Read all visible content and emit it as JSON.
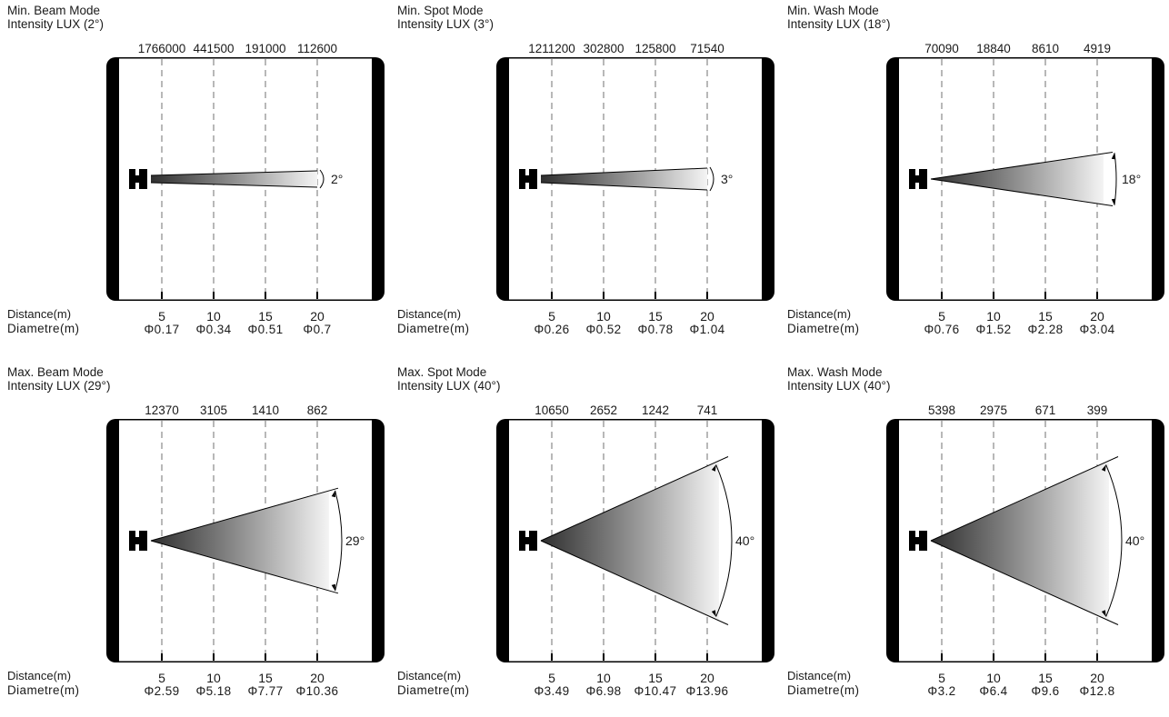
{
  "colors": {
    "ink": "#000000",
    "dashed_grid": "#9a9a9a",
    "beam_dark": "#2f2f2f",
    "beam_light": "#f4f4f4"
  },
  "panels": [
    {
      "title": "Min. Beam Mode",
      "subtitle": "Intensity LUX (2°)",
      "angle_deg": 2,
      "angle_label": "2°",
      "intensity": [
        "1766000",
        "441500",
        "191000",
        "112600"
      ],
      "distance_label": "Distance(m)",
      "distances": [
        "5",
        "10",
        "15",
        "20"
      ],
      "diameter_label": "Diametre(m)",
      "diameters": [
        "Φ0.17",
        "Φ0.34",
        "Φ0.51",
        "Φ0.7"
      ]
    },
    {
      "title": "Min. Spot Mode",
      "subtitle": "Intensity LUX (3°)",
      "angle_deg": 3,
      "angle_label": "3°",
      "intensity": [
        "1211200",
        "302800",
        "125800",
        "71540"
      ],
      "distance_label": "Distance(m)",
      "distances": [
        "5",
        "10",
        "15",
        "20"
      ],
      "diameter_label": "Diametre(m)",
      "diameters": [
        "Φ0.26",
        "Φ0.52",
        "Φ0.78",
        "Φ1.04"
      ]
    },
    {
      "title": "Min. Wash Mode",
      "subtitle": "Intensity LUX (18°)",
      "angle_deg": 18,
      "angle_label": "18°",
      "intensity": [
        "70090",
        "18840",
        "8610",
        "4919"
      ],
      "distance_label": "Distance(m)",
      "distances": [
        "5",
        "10",
        "15",
        "20"
      ],
      "diameter_label": "Diametre(m)",
      "diameters": [
        "Φ0.76",
        "Φ1.52",
        "Φ2.28",
        "Φ3.04"
      ]
    },
    {
      "title": "Max. Beam Mode",
      "subtitle": "Intensity LUX (29°)",
      "angle_deg": 29,
      "angle_label": "29°",
      "intensity": [
        "12370",
        "3105",
        "1410",
        "862"
      ],
      "distance_label": "Distance(m)",
      "distances": [
        "5",
        "10",
        "15",
        "20"
      ],
      "diameter_label": "Diametre(m)",
      "diameters": [
        "Φ2.59",
        "Φ5.18",
        "Φ7.77",
        "Φ10.36"
      ]
    },
    {
      "title": "Max. Spot Mode",
      "subtitle": "Intensity LUX (40°)",
      "angle_deg": 40,
      "angle_label": "40°",
      "intensity": [
        "10650",
        "2652",
        "1242",
        "741"
      ],
      "distance_label": "Distance(m)",
      "distances": [
        "5",
        "10",
        "15",
        "20"
      ],
      "diameter_label": "Diametre(m)",
      "diameters": [
        "Φ3.49",
        "Φ6.98",
        "Φ10.47",
        "Φ13.96"
      ]
    },
    {
      "title": "Max. Wash Mode",
      "subtitle": "Intensity LUX (40°)",
      "angle_deg": 40,
      "angle_label": "40°",
      "intensity": [
        "5398",
        "2975",
        "671",
        "399"
      ],
      "distance_label": "Distance(m)",
      "distances": [
        "5",
        "10",
        "15",
        "20"
      ],
      "diameter_label": "Diametre(m)",
      "diameters": [
        "Φ3.2",
        "Φ6.4",
        "Φ9.6",
        "Φ12.8"
      ]
    }
  ],
  "chart_data": [
    {
      "type": "table",
      "title": "Min. Beam Mode",
      "beam_angle_deg": 2,
      "distances_m": [
        5,
        10,
        15,
        20
      ],
      "intensity_lux": [
        1766000,
        441500,
        191000,
        112600
      ],
      "diameter_m": [
        0.17,
        0.34,
        0.51,
        0.7
      ]
    },
    {
      "type": "table",
      "title": "Min. Spot Mode",
      "beam_angle_deg": 3,
      "distances_m": [
        5,
        10,
        15,
        20
      ],
      "intensity_lux": [
        1211200,
        302800,
        125800,
        71540
      ],
      "diameter_m": [
        0.26,
        0.52,
        0.78,
        1.04
      ]
    },
    {
      "type": "table",
      "title": "Min. Wash Mode",
      "beam_angle_deg": 18,
      "distances_m": [
        5,
        10,
        15,
        20
      ],
      "intensity_lux": [
        70090,
        18840,
        8610,
        4919
      ],
      "diameter_m": [
        0.76,
        1.52,
        2.28,
        3.04
      ]
    },
    {
      "type": "table",
      "title": "Max. Beam Mode",
      "beam_angle_deg": 29,
      "distances_m": [
        5,
        10,
        15,
        20
      ],
      "intensity_lux": [
        12370,
        3105,
        1410,
        862
      ],
      "diameter_m": [
        2.59,
        5.18,
        7.77,
        10.36
      ]
    },
    {
      "type": "table",
      "title": "Max. Spot Mode",
      "beam_angle_deg": 40,
      "distances_m": [
        5,
        10,
        15,
        20
      ],
      "intensity_lux": [
        10650,
        2652,
        1242,
        741
      ],
      "diameter_m": [
        3.49,
        6.98,
        10.47,
        13.96
      ]
    },
    {
      "type": "table",
      "title": "Max. Wash Mode",
      "beam_angle_deg": 40,
      "distances_m": [
        5,
        10,
        15,
        20
      ],
      "intensity_lux": [
        5398,
        2975,
        671,
        399
      ],
      "diameter_m": [
        3.2,
        6.4,
        9.6,
        12.8
      ]
    }
  ]
}
